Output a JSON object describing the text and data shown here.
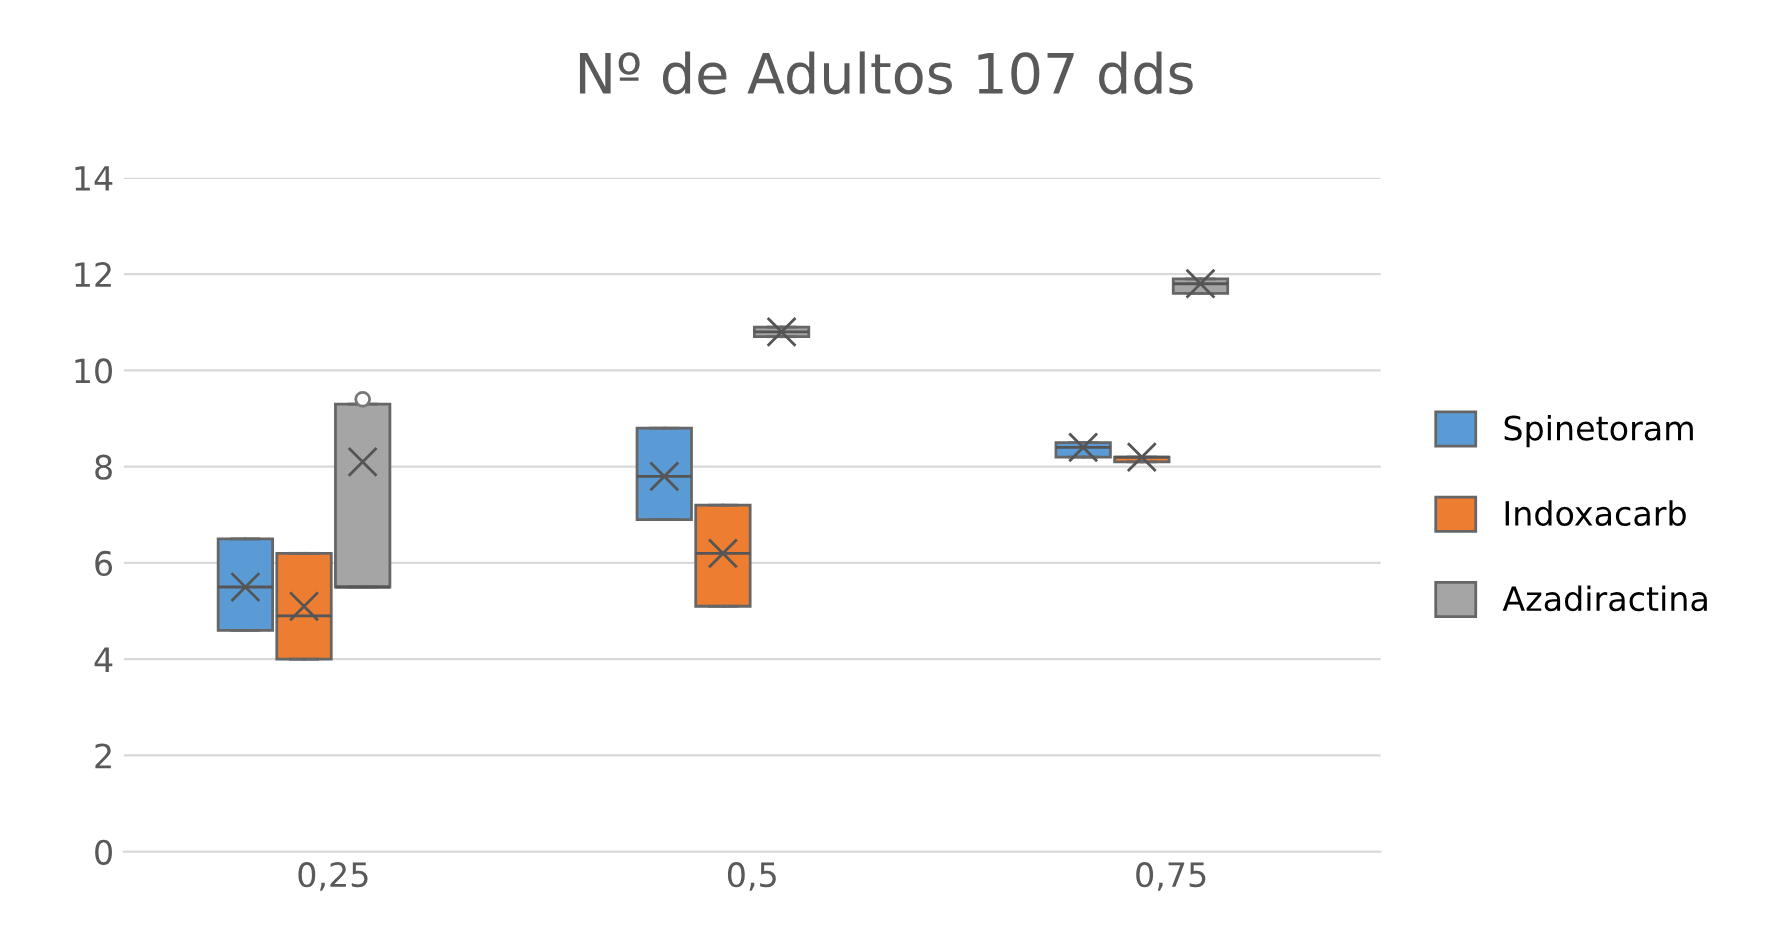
{
  "chart_data": {
    "type": "box",
    "title": "Nº de Adultos 107 dds",
    "categories": [
      "0,25",
      "0,5",
      "0,75"
    ],
    "series": [
      {
        "name": "Spinetoram",
        "color": "#5b9bd5",
        "boxes": [
          {
            "low": 4.6,
            "q1": 4.6,
            "median": 5.5,
            "q3": 6.5,
            "high": 6.5,
            "mean": 5.5
          },
          {
            "low": 6.9,
            "q1": 6.9,
            "median": 7.8,
            "q3": 8.8,
            "high": 8.8,
            "mean": 7.8
          },
          {
            "low": 8.2,
            "q1": 8.2,
            "median": 8.4,
            "q3": 8.5,
            "high": 8.5,
            "mean": 8.4
          }
        ]
      },
      {
        "name": "Indoxacarb",
        "color": "#ed7d31",
        "boxes": [
          {
            "low": 4.0,
            "q1": 4.0,
            "median": 4.9,
            "q3": 6.2,
            "high": 6.2,
            "mean": 5.1
          },
          {
            "low": 5.1,
            "q1": 5.1,
            "median": 6.2,
            "q3": 7.2,
            "high": 7.2,
            "mean": 6.2
          },
          {
            "low": 8.1,
            "q1": 8.1,
            "median": 8.2,
            "q3": 8.2,
            "high": 8.2,
            "mean": 8.2
          }
        ]
      },
      {
        "name": "Azadiractina",
        "color": "#a5a5a5",
        "boxes": [
          {
            "low": 5.5,
            "q1": 5.5,
            "median": 5.5,
            "q3": 9.3,
            "high": 9.3,
            "mean": 8.1,
            "outliers": [
              9.4
            ]
          },
          {
            "low": 10.7,
            "q1": 10.7,
            "median": 10.8,
            "q3": 10.9,
            "high": 10.9,
            "mean": 10.8
          },
          {
            "low": 11.6,
            "q1": 11.6,
            "median": 11.8,
            "q3": 11.9,
            "high": 11.9,
            "mean": 11.8
          }
        ]
      }
    ],
    "ylim": [
      0,
      14
    ],
    "yticks": [
      0,
      2,
      4,
      6,
      8,
      10,
      12,
      14
    ],
    "grid": "y",
    "legend": "right"
  }
}
